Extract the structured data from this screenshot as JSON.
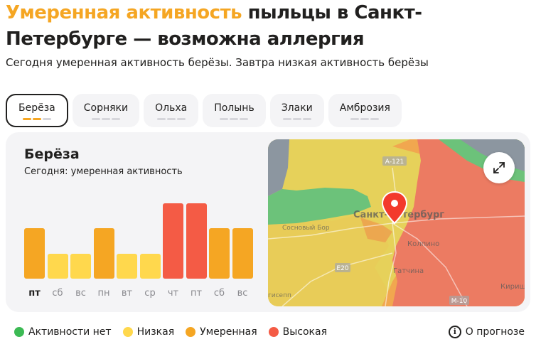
{
  "headline": {
    "accent": "Умеренная активность",
    "rest": " пыльцы в Санкт-Петербурге — возможна аллергия"
  },
  "subtitle": "Сегодня умеренная активность берёзы. Завтра низкая активность берёзы",
  "tabs": [
    {
      "label": "Берёза",
      "active": true,
      "level": 2
    },
    {
      "label": "Сорняки",
      "active": false,
      "level": 0
    },
    {
      "label": "Ольха",
      "active": false,
      "level": 0
    },
    {
      "label": "Полынь",
      "active": false,
      "level": 0
    },
    {
      "label": "Злаки",
      "active": false,
      "level": 0
    },
    {
      "label": "Амброзия",
      "active": false,
      "level": 0
    }
  ],
  "card": {
    "title": "Берёза",
    "status": "Сегодня: умеренная активность"
  },
  "chart_data": {
    "type": "bar",
    "categories": [
      "пт",
      "сб",
      "вс",
      "пн",
      "вт",
      "ср",
      "чт",
      "пт",
      "сб",
      "вс"
    ],
    "values": [
      2,
      1,
      1,
      2,
      1,
      1,
      3,
      3,
      2,
      2
    ],
    "ylim": [
      0,
      3
    ],
    "today_index": 0,
    "level_colors": {
      "1": "#ffd84d",
      "2": "#f5a623",
      "3": "#f45b45"
    }
  },
  "map": {
    "labels": {
      "city": "Санкт-Петербург",
      "kolpino": "Колпино",
      "gatchina": "Гатчина",
      "sosnovy_bor": "Сосновый Бор",
      "kirishi": "Кириш",
      "kingisepp": "гисепп",
      "road_a121": "А-121",
      "road_e20": "E20",
      "road_m10": "М-10"
    },
    "pin_icon": "location-pin-icon",
    "expand_icon": "expand-icon"
  },
  "legend": [
    {
      "label": "Активности нет",
      "color": "#3cba54"
    },
    {
      "label": "Низкая",
      "color": "#ffd84d"
    },
    {
      "label": "Умеренная",
      "color": "#f5a623"
    },
    {
      "label": "Высокая",
      "color": "#f45b45"
    }
  ],
  "forecast_link": {
    "label": "О прогнозе",
    "icon": "info-icon"
  }
}
